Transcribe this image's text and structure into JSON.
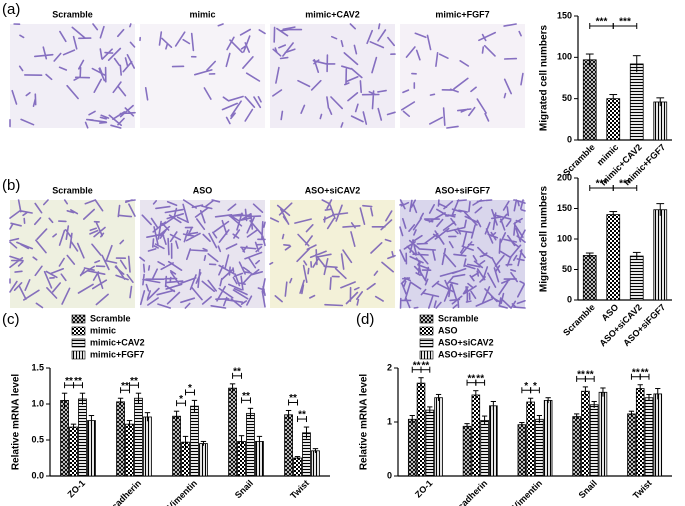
{
  "panels": [
    {
      "label": "(a)",
      "images": [
        "Scramble",
        "mimic",
        "mimic+CAV2",
        "mimic+FGF7"
      ]
    },
    {
      "label": "(b)",
      "images": [
        "Scramble",
        "ASO",
        "ASO+siCAV2",
        "ASO+siFGF7"
      ]
    },
    {
      "label": "(c)"
    },
    {
      "label": "(d)"
    }
  ],
  "chart_data": [
    {
      "type": "bar",
      "y_label": "Migrated cell numbers",
      "categories": [
        "Scramble",
        "mimic",
        "mimic+CAV2",
        "mimic+FGF7"
      ],
      "values": [
        97,
        50,
        92,
        46
      ],
      "errors": [
        7,
        5,
        10,
        5
      ],
      "patterns": [
        "crosshatch",
        "checker",
        "horizontal",
        "vertical"
      ],
      "ylim": [
        0,
        150
      ],
      "yticks": [
        0,
        50,
        100,
        150
      ],
      "annotations": [
        {
          "text": "***",
          "between": [
            0,
            1
          ]
        },
        {
          "text": "***",
          "between": [
            1,
            2
          ]
        }
      ]
    },
    {
      "type": "bar",
      "y_label": "Migrated cell numbers",
      "categories": [
        "Scramble",
        "ASO",
        "ASO+siCAV2",
        "ASO+siFGF7"
      ],
      "values": [
        73,
        140,
        72,
        148
      ],
      "errors": [
        4,
        5,
        6,
        10
      ],
      "patterns": [
        "crosshatch",
        "checker",
        "horizontal",
        "vertical"
      ],
      "ylim": [
        0,
        200
      ],
      "yticks": [
        0,
        50,
        100,
        150,
        200
      ],
      "annotations": [
        {
          "text": "***",
          "between": [
            0,
            1
          ]
        },
        {
          "text": "***",
          "between": [
            1,
            2
          ]
        }
      ]
    },
    {
      "type": "bar",
      "y_label": "Relative mRNA level",
      "categories": [
        "ZO-1",
        "E-cadherin",
        "Vimentin",
        "Snail",
        "Twist"
      ],
      "series": [
        {
          "name": "Scramble",
          "pattern": "crosshatch",
          "values": [
            1.05,
            1.03,
            0.83,
            1.22,
            0.85
          ],
          "errors": [
            0.1,
            0.05,
            0.07,
            0.06,
            0.06
          ]
        },
        {
          "name": "mimic",
          "pattern": "checker",
          "values": [
            0.68,
            0.72,
            0.47,
            0.48,
            0.25
          ],
          "errors": [
            0.04,
            0.05,
            0.08,
            0.08,
            0.02
          ]
        },
        {
          "name": "mimic+CAV2",
          "pattern": "horizontal",
          "values": [
            1.07,
            1.08,
            0.97,
            0.87,
            0.6
          ],
          "errors": [
            0.08,
            0.07,
            0.08,
            0.07,
            0.08
          ]
        },
        {
          "name": "mimic+FGF7",
          "pattern": "vertical",
          "values": [
            0.77,
            0.82,
            0.45,
            0.48,
            0.35
          ],
          "errors": [
            0.07,
            0.06,
            0.03,
            0.07,
            0.03
          ]
        }
      ],
      "ylim": [
        0,
        1.5
      ],
      "yticks": [
        {
          "value": 0,
          "label": "0.0"
        },
        0.5,
        {
          "value": 1,
          "label": "1.0"
        },
        1.5
      ],
      "annotations": [
        {
          "text": "**",
          "category": 0,
          "between": [
            0,
            1
          ]
        },
        {
          "text": "**",
          "category": 0,
          "between": [
            1,
            2
          ]
        },
        {
          "text": "**",
          "category": 1,
          "between": [
            0,
            1
          ]
        },
        {
          "text": "**",
          "category": 1,
          "between": [
            1,
            2
          ]
        },
        {
          "text": "*",
          "category": 2,
          "between": [
            0,
            1
          ]
        },
        {
          "text": "*",
          "category": 2,
          "between": [
            1,
            2
          ]
        },
        {
          "text": "**",
          "category": 3,
          "between": [
            0,
            1
          ]
        },
        {
          "text": "**",
          "category": 3,
          "between": [
            1,
            2
          ]
        },
        {
          "text": "**",
          "category": 4,
          "between": [
            0,
            1
          ]
        },
        {
          "text": "**",
          "category": 4,
          "between": [
            1,
            2
          ]
        }
      ]
    },
    {
      "type": "bar",
      "y_label": "Relative mRNA level",
      "categories": [
        "ZO-1",
        "E-cadherin",
        "Vimentin",
        "Snail",
        "Twist"
      ],
      "series": [
        {
          "name": "Scramble",
          "pattern": "crosshatch",
          "values": [
            1.05,
            0.92,
            0.95,
            1.1,
            1.15
          ],
          "errors": [
            0.07,
            0.05,
            0.04,
            0.05,
            0.05
          ]
        },
        {
          "name": "ASO",
          "pattern": "checker",
          "values": [
            1.72,
            1.5,
            1.37,
            1.57,
            1.62
          ],
          "errors": [
            0.1,
            0.08,
            0.07,
            0.08,
            0.07
          ]
        },
        {
          "name": "ASO+siCAV2",
          "pattern": "horizontal",
          "values": [
            1.22,
            1.03,
            1.05,
            1.32,
            1.45
          ],
          "errors": [
            0.06,
            0.08,
            0.07,
            0.06,
            0.06
          ]
        },
        {
          "name": "ASO+siFGF7",
          "pattern": "vertical",
          "values": [
            1.45,
            1.3,
            1.4,
            1.55,
            1.52
          ],
          "errors": [
            0.06,
            0.08,
            0.05,
            0.08,
            0.1
          ]
        }
      ],
      "ylim": [
        0,
        2
      ],
      "yticks": [
        0,
        1,
        2
      ],
      "annotations": [
        {
          "text": "**",
          "category": 0,
          "between": [
            0,
            1
          ]
        },
        {
          "text": "**",
          "category": 0,
          "between": [
            1,
            2
          ]
        },
        {
          "text": "**",
          "category": 1,
          "between": [
            0,
            1
          ]
        },
        {
          "text": "**",
          "category": 1,
          "between": [
            1,
            2
          ]
        },
        {
          "text": "*",
          "category": 2,
          "between": [
            0,
            1
          ]
        },
        {
          "text": "*",
          "category": 2,
          "between": [
            1,
            2
          ]
        },
        {
          "text": "**",
          "category": 3,
          "between": [
            0,
            1
          ]
        },
        {
          "text": "**",
          "category": 3,
          "between": [
            1,
            2
          ]
        },
        {
          "text": "**",
          "category": 4,
          "between": [
            0,
            1
          ]
        },
        {
          "text": "**",
          "category": 4,
          "between": [
            1,
            2
          ]
        }
      ]
    }
  ]
}
